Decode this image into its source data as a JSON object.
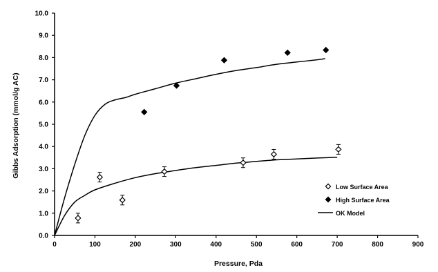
{
  "chart_data": {
    "type": "scatter",
    "title": "",
    "xlabel": "Pressure, Pda",
    "ylabel": "Gibbs Adsorption (mmol/g AC)",
    "xlim": [
      0,
      900
    ],
    "ylim": [
      0.0,
      10.0
    ],
    "x_ticks": [
      "0",
      "100",
      "200",
      "300",
      "400",
      "500",
      "600",
      "700",
      "800",
      "900"
    ],
    "y_ticks": [
      "0.0",
      "1.0",
      "2.0",
      "3.0",
      "4.0",
      "5.0",
      "6.0",
      "7.0",
      "8.0",
      "9.0",
      "10.0"
    ],
    "grid": false,
    "legend_position": "right",
    "series": [
      {
        "name": "Low Surface Area",
        "kind": "points",
        "marker": "open-diamond",
        "color": "#000000",
        "x": [
          58,
          112,
          168,
          272,
          467,
          543,
          703
        ],
        "y": [
          0.78,
          2.62,
          1.59,
          2.87,
          3.27,
          3.65,
          3.87
        ]
      },
      {
        "name": "High Surface Area",
        "kind": "points",
        "marker": "filled-diamond",
        "color": "#000000",
        "x": [
          222,
          302,
          420,
          577,
          672
        ],
        "y": [
          5.55,
          6.74,
          7.88,
          8.22,
          8.34
        ]
      },
      {
        "name": "OK Model",
        "kind": "line",
        "color": "#000000",
        "curves": [
          {
            "x": [
              0,
              25,
              50,
              75,
              100,
              125,
              150,
              175,
              200,
              250,
              300,
              350,
              400,
              450,
              500,
              550,
              600,
              650,
              670
            ],
            "y": [
              0.0,
              1.7,
              3.2,
              4.5,
              5.4,
              5.9,
              6.1,
              6.2,
              6.35,
              6.6,
              6.85,
              7.05,
              7.25,
              7.42,
              7.55,
              7.7,
              7.8,
              7.9,
              7.95
            ]
          },
          {
            "x": [
              0,
              25,
              50,
              75,
              100,
              150,
              200,
              250,
              300,
              350,
              400,
              450,
              500,
              550,
              600,
              650,
              700
            ],
            "y": [
              0.0,
              0.9,
              1.5,
              1.8,
              2.05,
              2.35,
              2.6,
              2.78,
              2.92,
              3.05,
              3.15,
              3.25,
              3.33,
              3.4,
              3.44,
              3.48,
              3.52
            ]
          }
        ]
      }
    ]
  }
}
